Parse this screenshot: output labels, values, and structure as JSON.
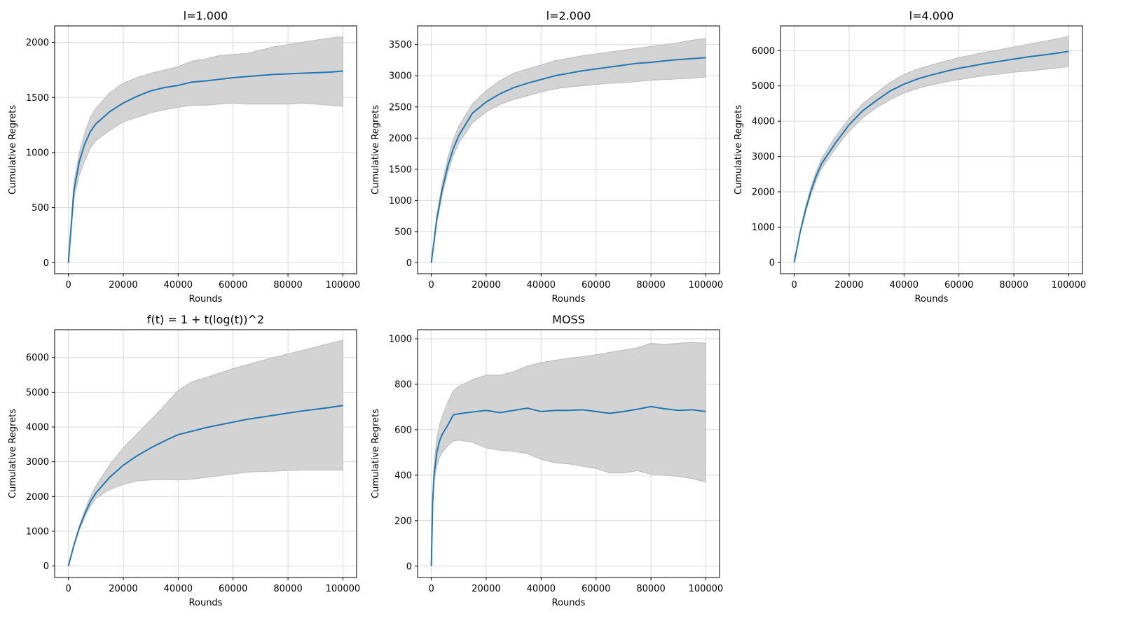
{
  "figure": {
    "background": "#ffffff",
    "band_color": "#d3d3d3",
    "band_edge_color": "#c0c0c0",
    "line_color": "#1f77b4",
    "grid_color": "#d9d9d9"
  },
  "chart_data": [
    {
      "type": "line",
      "title": "l=1.000",
      "xlabel": "Rounds",
      "ylabel": "Cumulative Regrets",
      "xlim": [
        -5000,
        105000
      ],
      "ylim": [
        -100,
        2150
      ],
      "xticks": [
        0,
        20000,
        40000,
        60000,
        80000,
        100000
      ],
      "xtick_labels": [
        "0",
        "20000",
        "40000",
        "60000",
        "80000",
        "100000"
      ],
      "yticks": [
        0,
        500,
        1000,
        1500,
        2000
      ],
      "ytick_labels": [
        "0",
        "500",
        "1000",
        "1500",
        "2000"
      ],
      "grid": true,
      "series": [
        {
          "shaded_band": "min-max range",
          "x": [
            0,
            2000,
            4000,
            6000,
            8000,
            10000,
            15000,
            20000,
            25000,
            30000,
            35000,
            40000,
            45000,
            50000,
            55000,
            60000,
            65000,
            70000,
            75000,
            80000,
            85000,
            90000,
            95000,
            100000
          ],
          "y": [
            0,
            650,
            920,
            1080,
            1190,
            1260,
            1370,
            1450,
            1510,
            1560,
            1590,
            1610,
            1640,
            1650,
            1665,
            1680,
            1690,
            1700,
            1710,
            1715,
            1720,
            1725,
            1730,
            1740
          ],
          "y_lower": [
            0,
            580,
            800,
            930,
            1040,
            1110,
            1200,
            1280,
            1320,
            1360,
            1390,
            1410,
            1430,
            1430,
            1440,
            1450,
            1440,
            1440,
            1440,
            1440,
            1450,
            1440,
            1430,
            1420
          ],
          "y_upper": [
            0,
            720,
            1000,
            1180,
            1320,
            1400,
            1540,
            1630,
            1680,
            1720,
            1750,
            1780,
            1830,
            1850,
            1880,
            1890,
            1900,
            1930,
            1960,
            1980,
            2000,
            2020,
            2040,
            2050
          ]
        }
      ]
    },
    {
      "type": "line",
      "title": "l=2.000",
      "xlabel": "Rounds",
      "ylabel": "Cumulative Regrets",
      "xlim": [
        -5000,
        105000
      ],
      "ylim": [
        -175,
        3800
      ],
      "xticks": [
        0,
        20000,
        40000,
        60000,
        80000,
        100000
      ],
      "xtick_labels": [
        "0",
        "20000",
        "40000",
        "60000",
        "80000",
        "100000"
      ],
      "yticks": [
        0,
        500,
        1000,
        1500,
        2000,
        2500,
        3000,
        3500
      ],
      "ytick_labels": [
        "0",
        "500",
        "1000",
        "1500",
        "2000",
        "2500",
        "3000",
        "3500"
      ],
      "grid": true,
      "series": [
        {
          "shaded_band": "min-max range",
          "x": [
            0,
            2000,
            4000,
            6000,
            8000,
            10000,
            15000,
            20000,
            25000,
            30000,
            35000,
            40000,
            45000,
            50000,
            55000,
            60000,
            65000,
            70000,
            75000,
            80000,
            85000,
            90000,
            95000,
            100000
          ],
          "y": [
            0,
            700,
            1180,
            1550,
            1830,
            2040,
            2400,
            2580,
            2710,
            2810,
            2880,
            2940,
            3000,
            3040,
            3080,
            3110,
            3140,
            3170,
            3200,
            3215,
            3240,
            3260,
            3275,
            3290
          ],
          "y_lower": [
            0,
            650,
            1100,
            1450,
            1720,
            1920,
            2250,
            2420,
            2540,
            2620,
            2680,
            2740,
            2790,
            2820,
            2840,
            2860,
            2880,
            2890,
            2910,
            2930,
            2940,
            2950,
            2960,
            2980
          ],
          "y_upper": [
            0,
            760,
            1280,
            1680,
            1970,
            2190,
            2550,
            2760,
            2920,
            3040,
            3110,
            3170,
            3240,
            3280,
            3320,
            3350,
            3380,
            3410,
            3440,
            3470,
            3500,
            3530,
            3570,
            3600
          ]
        }
      ]
    },
    {
      "type": "line",
      "title": "l=4.000",
      "xlabel": "Rounds",
      "ylabel": "Cumulative Regrets",
      "xlim": [
        -5000,
        105000
      ],
      "ylim": [
        -320,
        6700
      ],
      "xticks": [
        0,
        20000,
        40000,
        60000,
        80000,
        100000
      ],
      "xtick_labels": [
        "0",
        "20000",
        "40000",
        "60000",
        "80000",
        "100000"
      ],
      "yticks": [
        0,
        1000,
        2000,
        3000,
        4000,
        5000,
        6000
      ],
      "ytick_labels": [
        "0",
        "1000",
        "2000",
        "3000",
        "4000",
        "5000",
        "6000"
      ],
      "grid": true,
      "series": [
        {
          "shaded_band": "min-max range",
          "x": [
            0,
            2000,
            4000,
            6000,
            8000,
            10000,
            15000,
            20000,
            25000,
            30000,
            35000,
            40000,
            45000,
            50000,
            55000,
            60000,
            65000,
            70000,
            75000,
            80000,
            85000,
            90000,
            95000,
            100000
          ],
          "y": [
            0,
            800,
            1450,
            2000,
            2450,
            2800,
            3380,
            3900,
            4300,
            4590,
            4860,
            5050,
            5200,
            5310,
            5410,
            5500,
            5570,
            5640,
            5700,
            5760,
            5820,
            5870,
            5920,
            5980
          ],
          "y_lower": [
            0,
            770,
            1380,
            1900,
            2330,
            2660,
            3230,
            3720,
            4100,
            4390,
            4610,
            4800,
            4930,
            5030,
            5110,
            5180,
            5240,
            5300,
            5340,
            5390,
            5420,
            5460,
            5500,
            5550
          ],
          "y_upper": [
            0,
            830,
            1520,
            2100,
            2570,
            2950,
            3560,
            4080,
            4500,
            4810,
            5100,
            5320,
            5480,
            5590,
            5700,
            5800,
            5880,
            5960,
            6030,
            6100,
            6180,
            6250,
            6320,
            6400
          ]
        }
      ]
    },
    {
      "type": "line",
      "title": "f(t) = 1 + t(log(t))^2",
      "xlabel": "Rounds",
      "ylabel": "Cumulative Regrets",
      "xlim": [
        -5000,
        105000
      ],
      "ylim": [
        -330,
        6800
      ],
      "xticks": [
        0,
        20000,
        40000,
        60000,
        80000,
        100000
      ],
      "xtick_labels": [
        "0",
        "20000",
        "40000",
        "60000",
        "80000",
        "100000"
      ],
      "yticks": [
        0,
        1000,
        2000,
        3000,
        4000,
        5000,
        6000
      ],
      "ytick_labels": [
        "0",
        "1000",
        "2000",
        "3000",
        "4000",
        "5000",
        "6000"
      ],
      "grid": true,
      "series": [
        {
          "shaded_band": "min-max range",
          "x": [
            0,
            2000,
            4000,
            6000,
            8000,
            10000,
            15000,
            20000,
            25000,
            30000,
            35000,
            40000,
            45000,
            50000,
            55000,
            60000,
            65000,
            70000,
            75000,
            80000,
            85000,
            90000,
            95000,
            100000
          ],
          "y": [
            0,
            600,
            1100,
            1500,
            1850,
            2100,
            2550,
            2900,
            3170,
            3400,
            3600,
            3780,
            3880,
            3980,
            4060,
            4140,
            4220,
            4280,
            4340,
            4400,
            4460,
            4510,
            4560,
            4620
          ],
          "y_lower": [
            0,
            580,
            1050,
            1420,
            1720,
            1950,
            2200,
            2350,
            2450,
            2480,
            2490,
            2480,
            2500,
            2550,
            2600,
            2650,
            2700,
            2720,
            2730,
            2750,
            2760,
            2760,
            2760,
            2760
          ],
          "y_upper": [
            0,
            620,
            1150,
            1600,
            2000,
            2300,
            2900,
            3400,
            3800,
            4200,
            4620,
            5050,
            5300,
            5420,
            5550,
            5680,
            5790,
            5900,
            6000,
            6100,
            6200,
            6300,
            6400,
            6500
          ]
        }
      ]
    },
    {
      "type": "line",
      "title": "MOSS",
      "xlabel": "Rounds",
      "ylabel": "Cumulative Regrets",
      "xlim": [
        -5000,
        105000
      ],
      "ylim": [
        -50,
        1040
      ],
      "xticks": [
        0,
        20000,
        40000,
        60000,
        80000,
        100000
      ],
      "xtick_labels": [
        "0",
        "20000",
        "40000",
        "60000",
        "80000",
        "100000"
      ],
      "yticks": [
        0,
        200,
        400,
        600,
        800,
        1000
      ],
      "ytick_labels": [
        "0",
        "200",
        "400",
        "600",
        "800",
        "1000"
      ],
      "grid": true,
      "series": [
        {
          "shaded_band": "min-max range",
          "x": [
            0,
            500,
            1000,
            2000,
            3000,
            4000,
            6000,
            8000,
            10000,
            15000,
            20000,
            25000,
            30000,
            35000,
            40000,
            45000,
            50000,
            55000,
            60000,
            65000,
            70000,
            75000,
            80000,
            85000,
            90000,
            95000,
            100000
          ],
          "y": [
            0,
            280,
            400,
            500,
            550,
            580,
            620,
            665,
            670,
            678,
            685,
            675,
            685,
            695,
            680,
            685,
            685,
            688,
            680,
            672,
            680,
            690,
            702,
            692,
            685,
            688,
            680
          ],
          "y_lower": [
            0,
            260,
            370,
            440,
            480,
            500,
            530,
            550,
            555,
            545,
            520,
            510,
            505,
            495,
            470,
            455,
            450,
            440,
            430,
            410,
            410,
            420,
            405,
            400,
            395,
            385,
            370
          ],
          "y_upper": [
            0,
            300,
            440,
            560,
            620,
            660,
            720,
            770,
            790,
            820,
            840,
            840,
            855,
            880,
            895,
            905,
            915,
            920,
            930,
            940,
            950,
            960,
            980,
            975,
            980,
            985,
            980
          ]
        }
      ]
    }
  ]
}
